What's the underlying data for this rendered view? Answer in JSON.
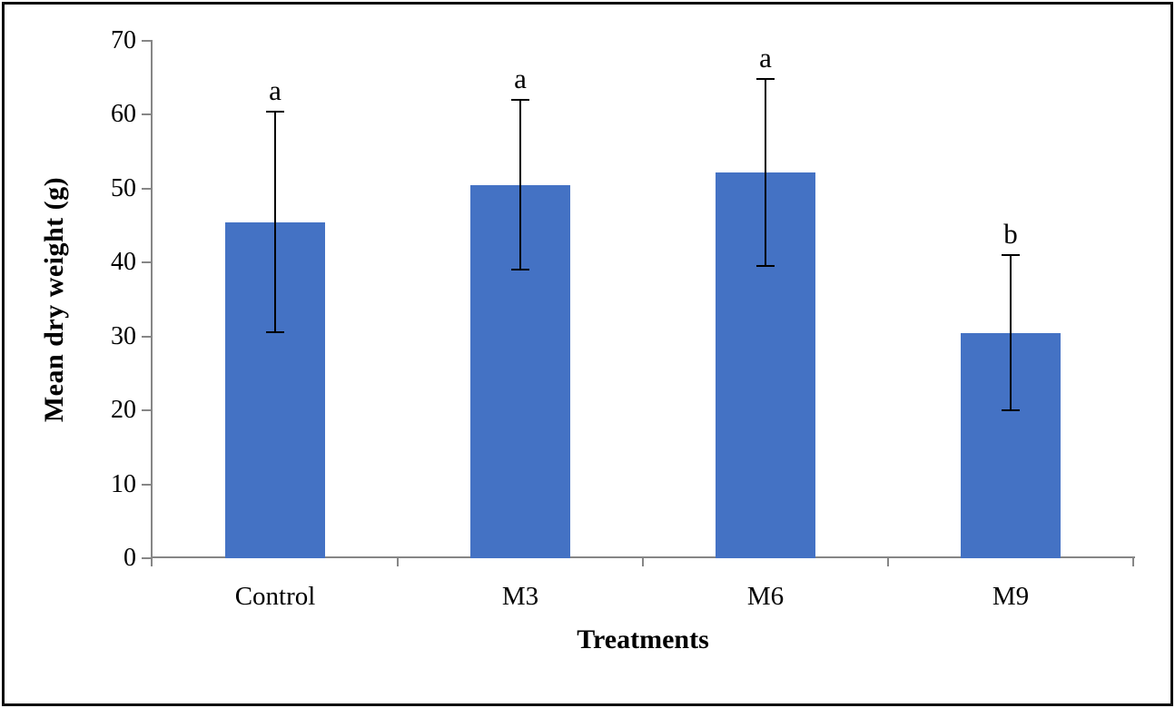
{
  "chart_data": {
    "type": "bar",
    "title": "",
    "categories": [
      "Control",
      "M3",
      "M6",
      "M9"
    ],
    "series": [
      {
        "name": "Mean dry weight",
        "values": [
          45.5,
          50.5,
          52.2,
          30.5
        ],
        "errors": [
          14.9,
          11.5,
          12.6,
          10.5
        ],
        "significance_letters": [
          "a",
          "a",
          "a",
          "b"
        ]
      }
    ],
    "xlabel": "Treatments",
    "ylabel": "Mean dry weight (g)",
    "ylim": [
      0,
      70
    ],
    "ytick_step": 10,
    "yticks": [
      0,
      10,
      20,
      30,
      40,
      50,
      60,
      70
    ],
    "grid": false,
    "legend": false,
    "bar_color": "#4472C4",
    "axis_color": "#868686",
    "error_bar_color": "#000000",
    "text_color": "#000000",
    "background": "#FFFFFF",
    "border_color": "#000000"
  }
}
